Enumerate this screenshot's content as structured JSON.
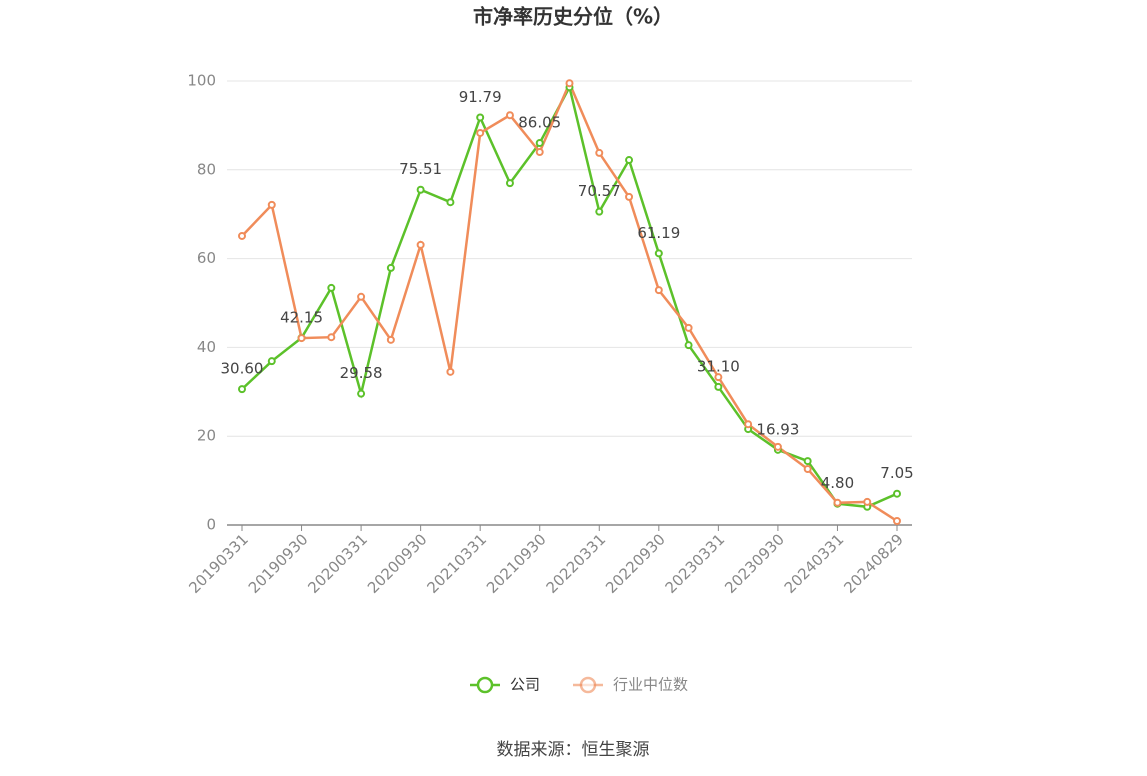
{
  "chart_data": {
    "type": "line",
    "title": "市净率历史分位（%）",
    "source": "数据来源：恒生聚源",
    "categories": [
      "20190331",
      null,
      "20190930",
      null,
      "20200331",
      null,
      "20200930",
      null,
      "20210331",
      null,
      "20210930",
      null,
      "20220331",
      null,
      "20220930",
      null,
      "20230331",
      null,
      "20230930",
      null,
      "20240331",
      null,
      "20240829"
    ],
    "series": [
      {
        "name": "公司",
        "color": "#5cc12a",
        "values": [
          30.6,
          36.9,
          42.15,
          53.4,
          29.58,
          57.9,
          75.51,
          72.7,
          91.79,
          77.0,
          86.05,
          98.6,
          70.57,
          82.2,
          61.19,
          40.5,
          31.1,
          21.6,
          16.93,
          14.4,
          4.8,
          4.1,
          7.05
        ],
        "value_labels": [
          "30.60",
          null,
          "42.15",
          null,
          "29.58",
          null,
          "75.51",
          null,
          "91.79",
          null,
          "86.05",
          null,
          "70.57",
          null,
          "61.19",
          null,
          "31.10",
          null,
          "16.93",
          null,
          "4.80",
          null,
          "7.05"
        ]
      },
      {
        "name": "行业中位数",
        "color": "#f08c5a",
        "values": [
          65.1,
          72.1,
          42.1,
          42.3,
          51.4,
          41.7,
          63.1,
          34.5,
          88.3,
          92.3,
          84.0,
          99.5,
          83.8,
          73.9,
          52.9,
          44.4,
          33.3,
          22.7,
          17.6,
          12.6,
          5.0,
          5.2,
          0.9
        ]
      }
    ],
    "ylim": [
      0,
      100
    ],
    "yticks": [
      0,
      20,
      40,
      60,
      80,
      100
    ],
    "grid": true,
    "legend": "bottom"
  }
}
